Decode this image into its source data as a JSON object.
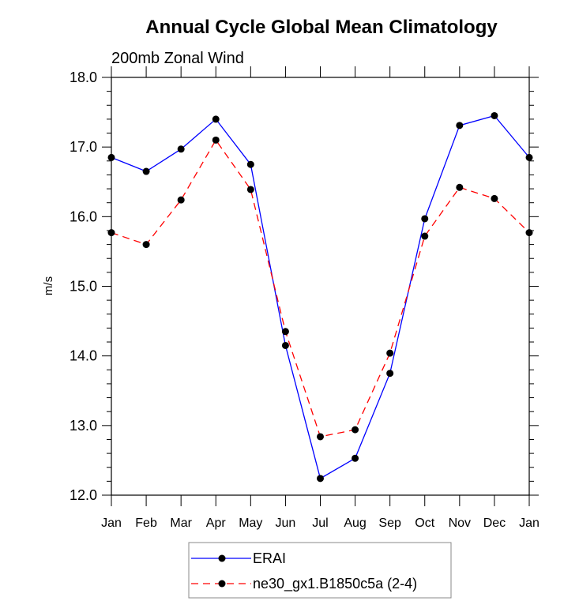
{
  "chart_data": {
    "type": "line",
    "title": "Annual Cycle Global Mean Climatology",
    "subtitle": "200mb Zonal Wind",
    "xlabel": "",
    "ylabel": "m/s",
    "categories": [
      "Jan",
      "Feb",
      "Mar",
      "Apr",
      "May",
      "Jun",
      "Jul",
      "Aug",
      "Sep",
      "Oct",
      "Nov",
      "Dec",
      "Jan"
    ],
    "ylim": [
      12.0,
      18.0
    ],
    "yticks": [
      "12.0",
      "13.0",
      "14.0",
      "15.0",
      "16.0",
      "17.0",
      "18.0"
    ],
    "y_minor_step": 0.2,
    "grid": false,
    "legend_position": "bottom-center",
    "series": [
      {
        "name": "ERAI",
        "color": "#0000ff",
        "line_style": "solid",
        "marker": "filled-circle",
        "values": [
          16.85,
          16.65,
          16.97,
          17.4,
          16.75,
          14.15,
          12.24,
          12.53,
          13.75,
          15.97,
          17.31,
          17.45,
          16.85
        ]
      },
      {
        "name": "ne30_gx1.B1850c5a (2-4)",
        "color": "#ff0000",
        "line_style": "dashed",
        "marker": "filled-circle",
        "values": [
          15.77,
          15.6,
          16.24,
          17.1,
          16.39,
          14.35,
          12.84,
          12.94,
          14.04,
          15.72,
          16.42,
          16.26,
          15.77
        ]
      }
    ]
  }
}
